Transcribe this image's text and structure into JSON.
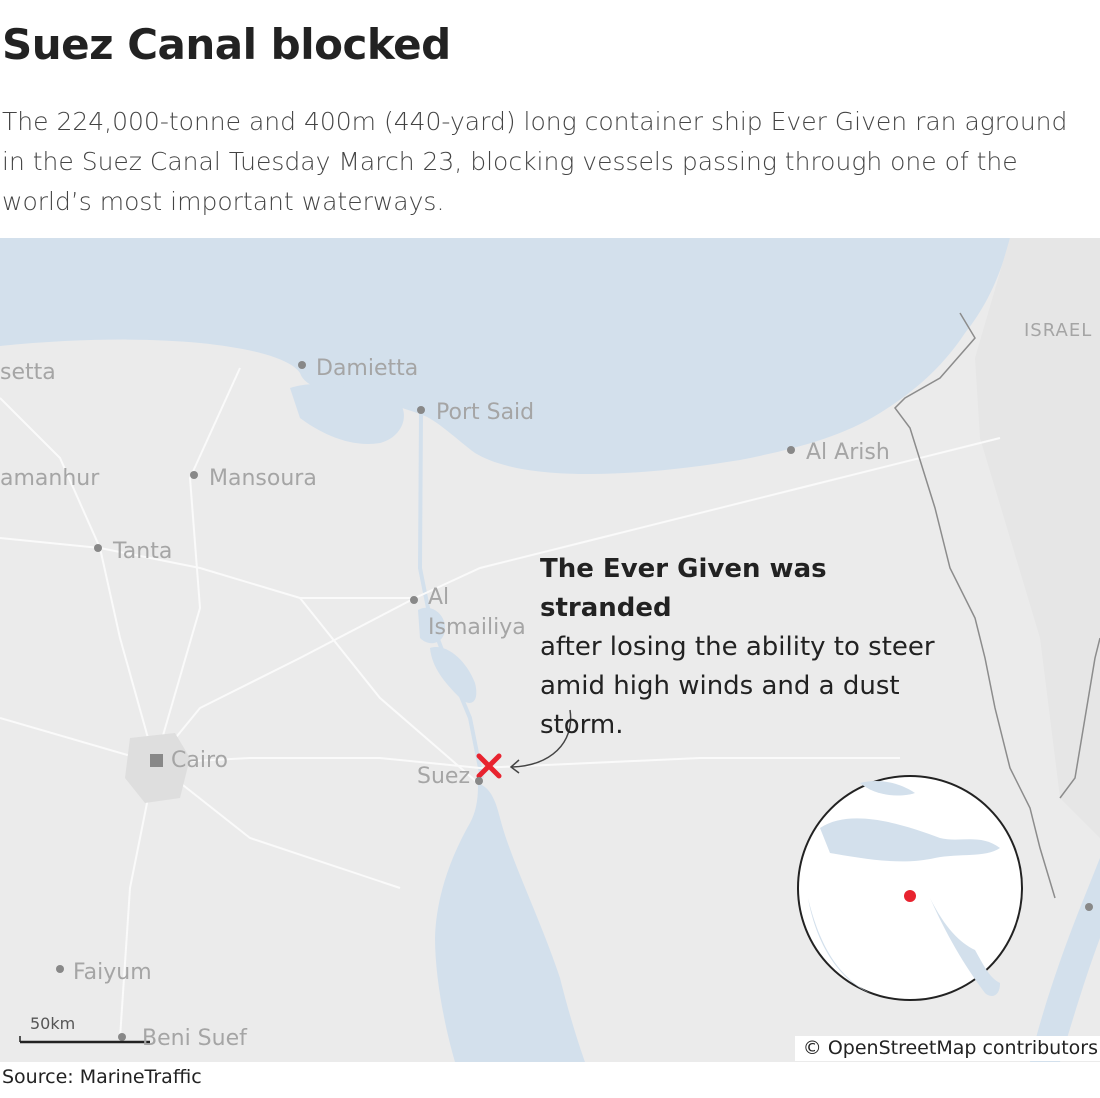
{
  "header": {
    "title": "Suez Canal blocked",
    "subtitle": "The 224,000-tonne and 400m (440-yard) long container ship Ever Given ran aground in the Suez Canal Tuesday March 23, blocking vessels passing through one of the world’s most important waterways."
  },
  "map": {
    "places": [
      {
        "name": "setta"
      },
      {
        "name": "Damietta"
      },
      {
        "name": "Port Said"
      },
      {
        "name": "Al Arish"
      },
      {
        "name": "amanhur"
      },
      {
        "name": "Mansoura"
      },
      {
        "name": "Tanta"
      },
      {
        "name": "Al Ismailiya"
      },
      {
        "name": "Cairo"
      },
      {
        "name": "Suez"
      },
      {
        "name": "Faiyum"
      },
      {
        "name": "Beni Suef"
      },
      {
        "name": "ISRAEL"
      }
    ],
    "annotation": {
      "heading": "The Ever Given was stranded",
      "body": "after losing the ability to steer amid high winds and a dust storm."
    },
    "scale": "50km",
    "attribution": "© OpenStreetMap contributors"
  },
  "footer": {
    "source": "Source: MarineTraffic"
  }
}
